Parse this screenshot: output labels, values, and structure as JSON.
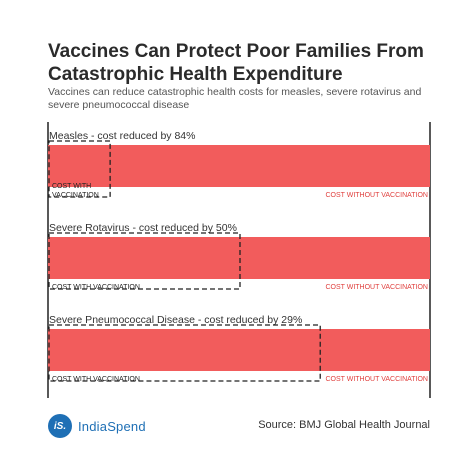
{
  "title": "Vaccines Can Protect Poor Families From Catastrophic Health Expenditure",
  "subtitle": "Vaccines can reduce catastrophic health costs for measles, severe rotavirus and severe pneumococcal disease",
  "source": "Source: BMJ Global Health Journal",
  "logo": {
    "mark": "iS.",
    "name": "IndiaSpend"
  },
  "colors": {
    "bar": "#f25c5c",
    "accent_text": "#e0403e",
    "logo": "#1e6fb5"
  },
  "chart_data": {
    "type": "bar",
    "orientation": "horizontal",
    "full_bar_label": "COST WITHOUT VACCINATION",
    "reduced_bar_label": "COST WITH VACCINATION",
    "xlim": [
      0,
      100
    ],
    "categories": [
      {
        "label": "Measles - cost reduced by 84%",
        "reduced_by": 84,
        "remaining": 16,
        "with_label": "COST WITH\nVACCINATION"
      },
      {
        "label": "Severe Rotavirus - cost reduced by 50%",
        "reduced_by": 50,
        "remaining": 50,
        "with_label": "COST WITH VACCINATION"
      },
      {
        "label": "Severe Pneumococcal Disease - cost reduced by 29%",
        "reduced_by": 29,
        "remaining": 71,
        "with_label": "COST WITH VACCINATION"
      }
    ]
  }
}
